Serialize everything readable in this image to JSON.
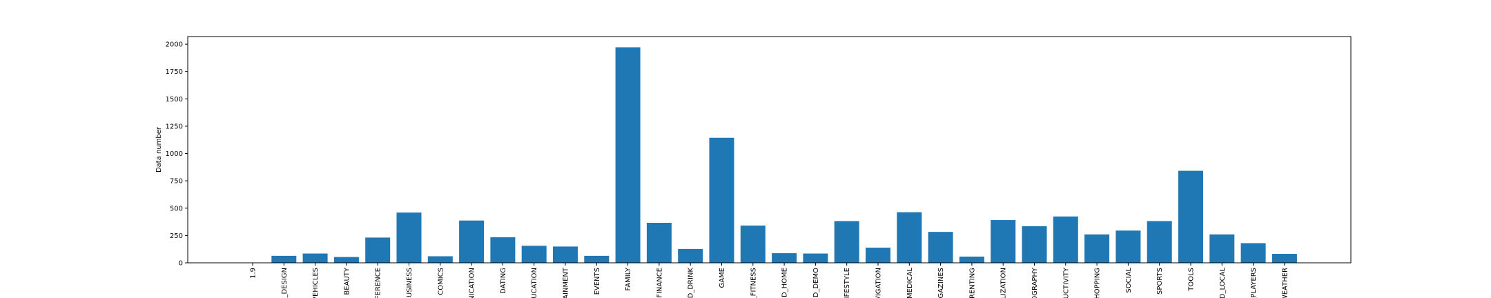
{
  "chart_data": {
    "type": "bar",
    "title": "",
    "xlabel": "",
    "ylabel": "Data number",
    "ylim": [
      0,
      2070
    ],
    "yticks": [
      "0",
      "250",
      "500",
      "750",
      "1000",
      "1250",
      "1500",
      "1750",
      "2000"
    ],
    "bar_color": "#1f77b4",
    "grid": false,
    "categories": [
      "1.9",
      "_DESIGN",
      "VEHICLES",
      "BEAUTY",
      "FERENCE",
      "BUSINESS",
      "COMICS",
      "NICATION",
      "DATING",
      "UCATION",
      "AINMENT",
      "EVENTS",
      "FAMILY",
      "FINANCE",
      "D_DRINK",
      "GAME",
      "_FITNESS",
      "ID_HOME",
      "ID_DEMO",
      "IFESTYLE",
      "VIGATION",
      "MEDICAL",
      "GAZINES",
      "RENTING",
      "LIZATION",
      "OGRAPHY",
      "UCTIVITY",
      "HOPPING",
      "SOCIAL",
      "SPORTS",
      "TOOLS",
      "D_LOCAL",
      "_PLAYERS",
      "WEATHER"
    ],
    "values": [
      1,
      64,
      85,
      53,
      231,
      460,
      60,
      387,
      234,
      156,
      149,
      64,
      1972,
      366,
      127,
      1144,
      341,
      88,
      85,
      382,
      139,
      463,
      283,
      57,
      391,
      335,
      424,
      260,
      295,
      382,
      842,
      260,
      180,
      82
    ]
  }
}
